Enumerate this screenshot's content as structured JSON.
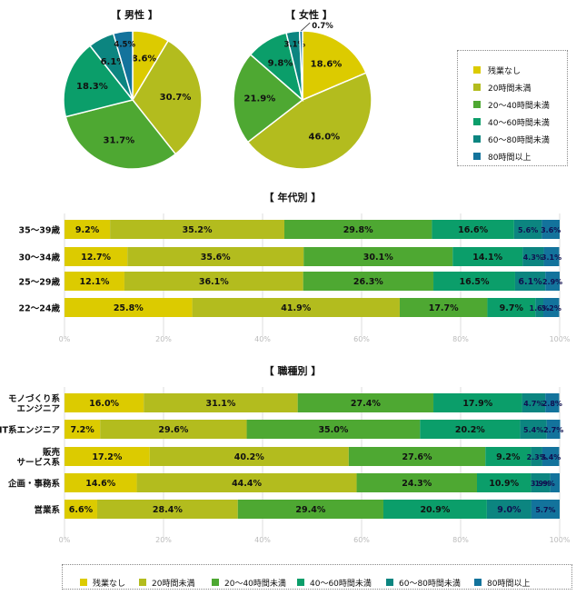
{
  "colors": [
    "#dccb00",
    "#b3bc1e",
    "#4ea832",
    "#0b9e6a",
    "#0c8580",
    "#13739c"
  ],
  "legend": [
    "残業なし",
    "20時間未満",
    "20～40時間未満",
    "40～60時間未満",
    "60～80時間未満",
    "80時間以上"
  ],
  "chart_data": [
    {
      "type": "pie",
      "title": "【 男性 】",
      "series_names": [
        "残業なし",
        "20時間未満",
        "20～40時間未満",
        "40～60時間未満",
        "60～80時間未満",
        "80時間以上"
      ],
      "values": [
        8.6,
        30.7,
        31.7,
        18.3,
        6.1,
        4.5
      ]
    },
    {
      "type": "pie",
      "title": "【 女性 】",
      "series_names": [
        "残業なし",
        "20時間未満",
        "20～40時間未満",
        "40～60時間未満",
        "60～80時間未満",
        "80時間以上"
      ],
      "values": [
        18.6,
        46.0,
        21.9,
        9.8,
        3.1,
        0.7
      ]
    },
    {
      "type": "bar",
      "title": "【 年代別 】",
      "categories": [
        "35～39歳",
        "30～34歳",
        "25～29歳",
        "22～24歳"
      ],
      "series": [
        {
          "name": "残業なし",
          "values": [
            9.2,
            12.7,
            12.1,
            25.8
          ]
        },
        {
          "name": "20時間未満",
          "values": [
            35.2,
            35.6,
            36.1,
            41.9
          ]
        },
        {
          "name": "20～40時間未満",
          "values": [
            29.8,
            30.1,
            26.3,
            17.7
          ]
        },
        {
          "name": "40～60時間未満",
          "values": [
            16.6,
            14.1,
            16.5,
            9.7
          ]
        },
        {
          "name": "60～80時間未満",
          "values": [
            5.6,
            4.3,
            6.1,
            1.6
          ]
        },
        {
          "name": "80時間以上",
          "values": [
            3.6,
            3.1,
            2.9,
            3.2
          ]
        }
      ],
      "xlim": [
        0,
        100
      ],
      "ticks": [
        "0%",
        "20%",
        "40%",
        "60%",
        "80%",
        "100%"
      ]
    },
    {
      "type": "bar",
      "title": "【 職種別 】",
      "categories": [
        "モノづくり系\nエンジニア",
        "IT系エンジニア",
        "販売\nサービス系",
        "企画・事務系",
        "営業系"
      ],
      "series": [
        {
          "name": "残業なし",
          "values": [
            16.0,
            7.2,
            17.2,
            14.6,
            6.6
          ]
        },
        {
          "name": "20時間未満",
          "values": [
            31.1,
            29.6,
            40.2,
            44.4,
            28.4
          ]
        },
        {
          "name": "20～40時間未満",
          "values": [
            27.4,
            35.0,
            27.6,
            24.3,
            29.4
          ]
        },
        {
          "name": "40～60時間未満",
          "values": [
            17.9,
            20.2,
            9.2,
            10.9,
            20.9
          ]
        },
        {
          "name": "60～80時間未満",
          "values": [
            4.7,
            5.4,
            2.3,
            3.9,
            9.0
          ]
        },
        {
          "name": "80時間以上",
          "values": [
            2.8,
            2.7,
            3.4,
            1.9,
            5.7
          ]
        }
      ],
      "xlim": [
        0,
        100
      ],
      "ticks": [
        "0%",
        "20%",
        "40%",
        "60%",
        "80%",
        "100%"
      ]
    }
  ]
}
